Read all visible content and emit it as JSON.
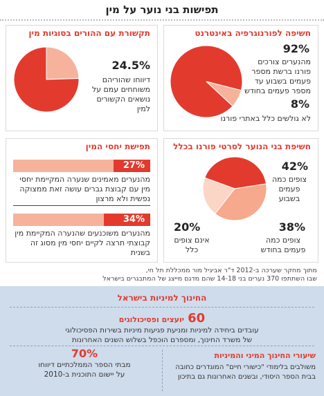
{
  "page_title": "תפישות בני נוער על מין",
  "panels": {
    "porn_exposure": {
      "heading": "חשיפה לפורנוגרפיה באינטרנט",
      "value_main": "92%",
      "text_main": "מהנערים צורכים פורנו ברשת מספר פעמים בשבוע עד מספר פעמים בחודש",
      "value_minor": "8%",
      "text_minor": "לא גולשים כלל באתרי פורנו"
    },
    "parents": {
      "heading": "תקשורת עם ההורים בסוגיות מין",
      "value": "24.5%",
      "text": "דיווחו שהוריהם משוחחים עמם על נושאים הקשורים למין"
    },
    "frequency": {
      "heading": "חשיפת בני הנוער לסרטי פורנו בכלל",
      "items": [
        {
          "value": "42%",
          "label": "צופים כמה פעמים בשבוע"
        },
        {
          "value": "38%",
          "label": "צופים כמה פעמים בחודש"
        },
        {
          "value": "20%",
          "label": "אינם צופים כלל"
        }
      ]
    },
    "sexual_relations": {
      "heading": "תפישת יחסי המין",
      "bars": [
        {
          "value": "27%",
          "text": "מהנערים מאמינים שנערה המקיימת יחסי מין עם קבוצת גברים עושה זאת ממצוקה נפשית ולא מרצון"
        },
        {
          "value": "34%",
          "text": "מהנערים משוכנעים שהנערה המקיימת מין קבוצתי תרצה לקיים יחסי מין מסוג זה בשנית"
        }
      ]
    }
  },
  "source": {
    "line1": "מתוך מחקר שערכה ב-2012 ד\"ר אביגיל מור ממכללת תל חי,",
    "line2": "שבו השתתפו 370 נערים בני 14-18 שהם מדגם מייצג של המתבגרים בישראל"
  },
  "education": {
    "title": "החינוך למיניות בישראל",
    "counselors_value": "60",
    "counselors_label": "יועצים ופסיכולוגים",
    "counselors_text1": "עובדים ביחידה למיניות ומניעת פגיעות מיניות בשירות הפסיכולוגי",
    "counselors_text2": "של משרד החינוך, ומספרם הוכפל בשלוש השנים האחרונות",
    "lessons_title": "שיעורי החינוך המיני והמיניות",
    "lessons_text1": "משולבים בלימודי \"כישורי חיים\" המוגדרים כחובה",
    "lessons_text2": "בבית הספר היסודי, ובשנים האחרונות גם בתיכון",
    "schools_value": "70%",
    "schools_text1": "מבתי הספר הממלכתיים דיווחו",
    "schools_text2": "על יישום התוכנית ב-2010"
  },
  "colors": {
    "accent_red": "#e23b2e",
    "light_salmon": "#f6b29b",
    "pale_peach": "#fbd5c5",
    "bottom_bg": "#cfdcec"
  },
  "chart_data": [
    {
      "type": "pie",
      "title": "חשיפה לפורנוגרפיה באינטרנט",
      "labels": [
        "צורכים פורנו ברשת",
        "לא גולשים כלל באתרי פורנו"
      ],
      "values": [
        92,
        8
      ],
      "colors": [
        "#e23b2e",
        "#f6b29b"
      ]
    },
    {
      "type": "pie",
      "title": "תקשורת עם ההורים בסוגיות מין",
      "labels": [
        "משוחחים",
        "אחר"
      ],
      "values": [
        24.5,
        75.5
      ],
      "colors": [
        "#f6b29b",
        "#e23b2e"
      ]
    },
    {
      "type": "pie",
      "title": "חשיפת בני הנוער לסרטי פורנו בכלל",
      "labels": [
        "צופים כמה פעמים בשבוע",
        "צופים כמה פעמים בחודש",
        "אינם צופים כלל"
      ],
      "values": [
        42,
        38,
        20
      ],
      "colors": [
        "#e23b2e",
        "#f6a98c",
        "#fbd5c5"
      ]
    },
    {
      "type": "bar",
      "title": "תפישת יחסי המין",
      "categories": [
        "27%",
        "34%"
      ],
      "values": [
        27,
        34
      ],
      "ylim": [
        0,
        100
      ]
    }
  ]
}
